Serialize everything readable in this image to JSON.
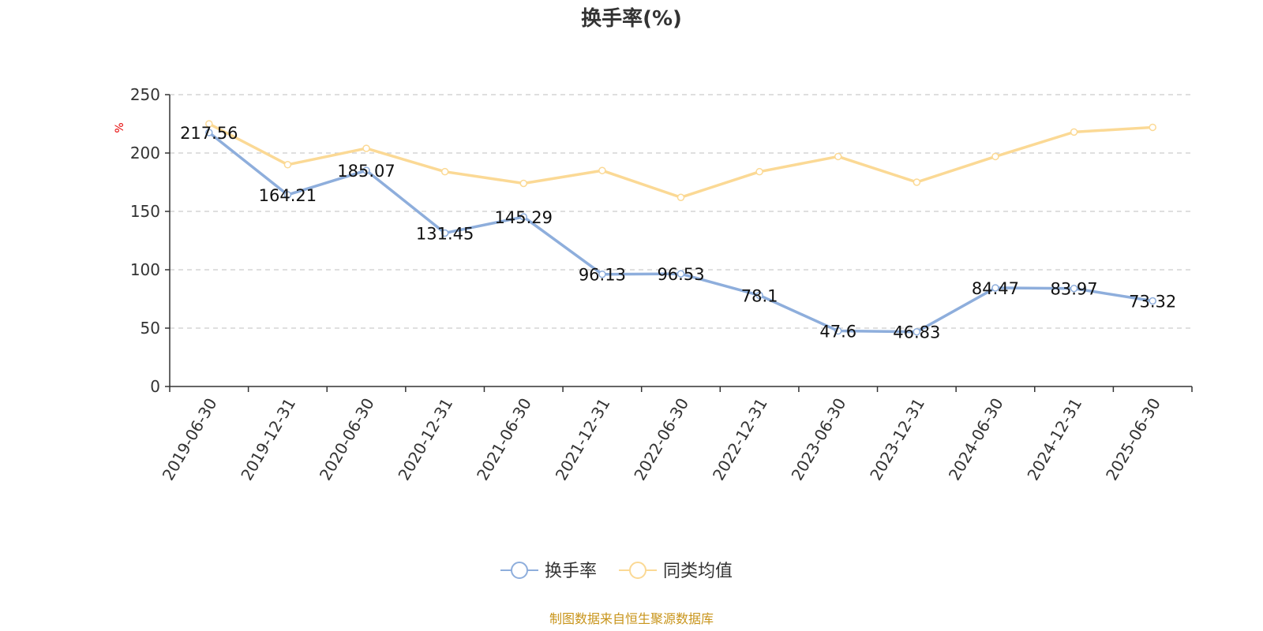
{
  "chart_data": {
    "type": "line",
    "title": "换手率(%)",
    "ylabel": "%",
    "categories": [
      "2019-06-30",
      "2019-12-31",
      "2020-06-30",
      "2020-12-31",
      "2021-06-30",
      "2021-12-31",
      "2022-06-30",
      "2022-12-31",
      "2023-06-30",
      "2023-12-31",
      "2024-06-30",
      "2024-12-31",
      "2025-06-30"
    ],
    "yticks": [
      "0",
      "50",
      "100",
      "150",
      "200",
      "250"
    ],
    "ylim": [
      0,
      250
    ],
    "grid": true,
    "legend_position": "bottom",
    "series": [
      {
        "name": "换手率",
        "color": "#8eaedc",
        "values": [
          217.56,
          164.21,
          185.07,
          131.45,
          145.29,
          96.13,
          96.53,
          78.1,
          47.6,
          46.83,
          84.47,
          83.97,
          73.32
        ],
        "labels": [
          "217.56",
          "164.21",
          "185.07",
          "131.45",
          "145.29",
          "96.13",
          "96.53",
          "78.1",
          "47.6",
          "46.83",
          "84.47",
          "83.97",
          "73.32"
        ]
      },
      {
        "name": "同类均值",
        "color": "#fbd995",
        "values": [
          225,
          190,
          204,
          184,
          174,
          185,
          162,
          184,
          197,
          175,
          197,
          218,
          222
        ]
      }
    ],
    "unit_color": "#e60000",
    "source_color": "#c8941a"
  },
  "footer": {
    "source": "制图数据来自恒生聚源数据库"
  }
}
